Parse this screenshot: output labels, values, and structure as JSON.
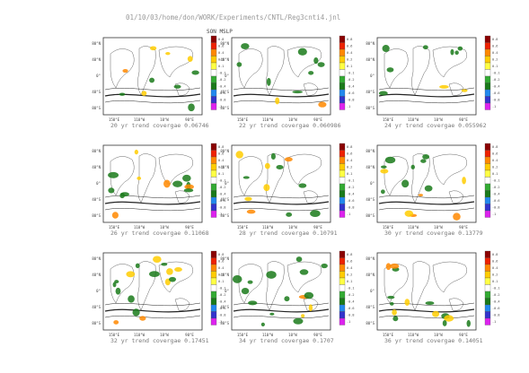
{
  "header": {
    "path": "01/10/03/home/don/WORK/Experiments/CNTL/Reg3cnti4.jnl",
    "title": "SON MSLP"
  },
  "axes": {
    "lat_labels": [
      "80°N",
      "40°N",
      "0°",
      "40°S",
      "80°S"
    ],
    "lon_labels": [
      "150°E",
      "110°W",
      "10°W",
      "90°E"
    ]
  },
  "colorbar": {
    "labels": [
      "0.8",
      "0.6",
      "0.4",
      "0.2",
      "0.1",
      "-0.1",
      "-0.2",
      "-0.4",
      "-0.6",
      "-0.8",
      "-1"
    ],
    "colors": [
      "#8b0000",
      "#ee2200",
      "#ff8800",
      "#ffcc00",
      "#ffff44",
      "#ffffff",
      "#33aa33",
      "#1a7a1a",
      "#2288ee",
      "#3333cc",
      "#dd22ee"
    ]
  },
  "chart_data": [
    {
      "type": "heatmap",
      "title": "20 yr trend covergae 0.06746",
      "value": 0.06746
    },
    {
      "type": "heatmap",
      "title": "22 yr trend covergae 0.060986",
      "value": 0.060986
    },
    {
      "type": "heatmap",
      "title": "24 yr trend covergae 0.055962",
      "value": 0.055962
    },
    {
      "type": "heatmap",
      "title": "26 yr trend covergae 0.11068",
      "value": 0.11068
    },
    {
      "type": "heatmap",
      "title": "28 yr trend covergae 0.10791",
      "value": 0.10791
    },
    {
      "type": "heatmap",
      "title": "30 yr trend covergae 0.13779",
      "value": 0.13779
    },
    {
      "type": "heatmap",
      "title": "32 yr trend covergae 0.17451",
      "value": 0.17451
    },
    {
      "type": "heatmap",
      "title": "34 yr trend covergae 0.1707",
      "value": 0.1707
    },
    {
      "type": "heatmap",
      "title": "36 yr trend covergae 0.14051",
      "value": 0.14051
    }
  ]
}
